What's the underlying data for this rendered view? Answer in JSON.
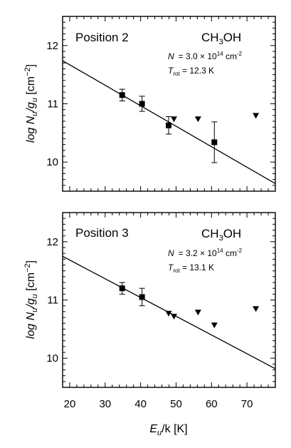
{
  "figure": {
    "xlabel": {
      "main": "E",
      "sub": "u",
      "rest": "/k [K]"
    },
    "ylabel": {
      "pre": "log N",
      "sub1": "u",
      "mid": "/g",
      "sub2": "u",
      "post": " [cm",
      "sup": "−2",
      "end": "]"
    },
    "x_ticks": [
      "20",
      "30",
      "40",
      "50",
      "60",
      "70"
    ],
    "y_ticks": [
      "10",
      "11",
      "12"
    ]
  },
  "chart_data": [
    {
      "type": "scatter",
      "panel_label": "Position 2",
      "molecule": {
        "pre": "CH",
        "sub": "3",
        "post": "OH"
      },
      "column_density": {
        "symbol": "N",
        "value": "= 3.0 × 10",
        "exp": "14",
        "unit": " cm",
        "unit_exp": "-2"
      },
      "rotation_temperature": {
        "symbol": "T",
        "sub": "rot",
        "value": " = 12.3 K"
      },
      "xlim": [
        18,
        78
      ],
      "ylim": [
        9.5,
        12.5
      ],
      "grid": false,
      "detections": [
        {
          "x": 34.8,
          "y": 11.15,
          "yerr": 0.1
        },
        {
          "x": 40.4,
          "y": 11.0,
          "yerr": 0.13
        },
        {
          "x": 47.9,
          "y": 10.63,
          "yerr": 0.15
        },
        {
          "x": 60.8,
          "y": 10.34,
          "yerr": 0.35
        }
      ],
      "upper_limits": [
        {
          "x": 49.4,
          "y": 10.74
        },
        {
          "x": 56.2,
          "y": 10.74
        },
        {
          "x": 72.5,
          "y": 10.8
        }
      ],
      "fit_line": {
        "x": [
          18,
          78
        ],
        "y": [
          11.74,
          9.63
        ]
      }
    },
    {
      "type": "scatter",
      "panel_label": "Position 3",
      "molecule": {
        "pre": "CH",
        "sub": "3",
        "post": "OH"
      },
      "column_density": {
        "symbol": "N",
        "value": "= 3.2 × 10",
        "exp": "14",
        "unit": " cm",
        "unit_exp": "-2"
      },
      "rotation_temperature": {
        "symbol": "T",
        "sub": "rot",
        "value": " = 13.1 K"
      },
      "xlim": [
        18,
        78
      ],
      "ylim": [
        9.5,
        12.5
      ],
      "grid": false,
      "detections": [
        {
          "x": 34.8,
          "y": 11.2,
          "yerr": 0.1
        },
        {
          "x": 40.4,
          "y": 11.05,
          "yerr": 0.15
        }
      ],
      "upper_limits": [
        {
          "x": 47.9,
          "y": 10.77
        },
        {
          "x": 49.4,
          "y": 10.72
        },
        {
          "x": 56.2,
          "y": 10.79
        },
        {
          "x": 60.8,
          "y": 10.57
        },
        {
          "x": 72.5,
          "y": 10.85
        }
      ],
      "fit_line": {
        "x": [
          18,
          78
        ],
        "y": [
          11.75,
          9.82
        ]
      }
    }
  ]
}
